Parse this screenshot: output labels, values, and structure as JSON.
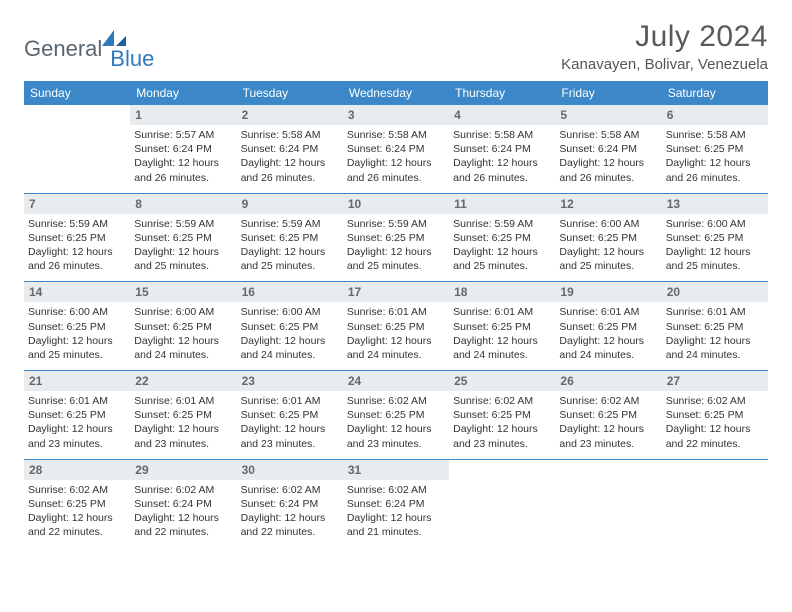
{
  "logo": {
    "text1": "General",
    "text2": "Blue"
  },
  "title": "July 2024",
  "location": "Kanavayen, Bolivar, Venezuela",
  "colors": {
    "header_bg": "#3b87c8",
    "header_fg": "#ffffff",
    "daynum_bg": "#e9ecef",
    "daynum_fg": "#606a72",
    "rule": "#3b87c8",
    "logo_gray": "#5a6770",
    "logo_blue": "#2f78bc"
  },
  "typography": {
    "title_fontsize": 30,
    "location_fontsize": 15,
    "weekday_fontsize": 12,
    "daynum_fontsize": 12,
    "cell_fontsize": 10.5
  },
  "weekdays": [
    "Sunday",
    "Monday",
    "Tuesday",
    "Wednesday",
    "Thursday",
    "Friday",
    "Saturday"
  ],
  "weeks": [
    [
      {
        "n": "",
        "sr": "",
        "ss": "",
        "dl": ""
      },
      {
        "n": "1",
        "sr": "Sunrise: 5:57 AM",
        "ss": "Sunset: 6:24 PM",
        "dl": "Daylight: 12 hours and 26 minutes."
      },
      {
        "n": "2",
        "sr": "Sunrise: 5:58 AM",
        "ss": "Sunset: 6:24 PM",
        "dl": "Daylight: 12 hours and 26 minutes."
      },
      {
        "n": "3",
        "sr": "Sunrise: 5:58 AM",
        "ss": "Sunset: 6:24 PM",
        "dl": "Daylight: 12 hours and 26 minutes."
      },
      {
        "n": "4",
        "sr": "Sunrise: 5:58 AM",
        "ss": "Sunset: 6:24 PM",
        "dl": "Daylight: 12 hours and 26 minutes."
      },
      {
        "n": "5",
        "sr": "Sunrise: 5:58 AM",
        "ss": "Sunset: 6:24 PM",
        "dl": "Daylight: 12 hours and 26 minutes."
      },
      {
        "n": "6",
        "sr": "Sunrise: 5:58 AM",
        "ss": "Sunset: 6:25 PM",
        "dl": "Daylight: 12 hours and 26 minutes."
      }
    ],
    [
      {
        "n": "7",
        "sr": "Sunrise: 5:59 AM",
        "ss": "Sunset: 6:25 PM",
        "dl": "Daylight: 12 hours and 26 minutes."
      },
      {
        "n": "8",
        "sr": "Sunrise: 5:59 AM",
        "ss": "Sunset: 6:25 PM",
        "dl": "Daylight: 12 hours and 25 minutes."
      },
      {
        "n": "9",
        "sr": "Sunrise: 5:59 AM",
        "ss": "Sunset: 6:25 PM",
        "dl": "Daylight: 12 hours and 25 minutes."
      },
      {
        "n": "10",
        "sr": "Sunrise: 5:59 AM",
        "ss": "Sunset: 6:25 PM",
        "dl": "Daylight: 12 hours and 25 minutes."
      },
      {
        "n": "11",
        "sr": "Sunrise: 5:59 AM",
        "ss": "Sunset: 6:25 PM",
        "dl": "Daylight: 12 hours and 25 minutes."
      },
      {
        "n": "12",
        "sr": "Sunrise: 6:00 AM",
        "ss": "Sunset: 6:25 PM",
        "dl": "Daylight: 12 hours and 25 minutes."
      },
      {
        "n": "13",
        "sr": "Sunrise: 6:00 AM",
        "ss": "Sunset: 6:25 PM",
        "dl": "Daylight: 12 hours and 25 minutes."
      }
    ],
    [
      {
        "n": "14",
        "sr": "Sunrise: 6:00 AM",
        "ss": "Sunset: 6:25 PM",
        "dl": "Daylight: 12 hours and 25 minutes."
      },
      {
        "n": "15",
        "sr": "Sunrise: 6:00 AM",
        "ss": "Sunset: 6:25 PM",
        "dl": "Daylight: 12 hours and 24 minutes."
      },
      {
        "n": "16",
        "sr": "Sunrise: 6:00 AM",
        "ss": "Sunset: 6:25 PM",
        "dl": "Daylight: 12 hours and 24 minutes."
      },
      {
        "n": "17",
        "sr": "Sunrise: 6:01 AM",
        "ss": "Sunset: 6:25 PM",
        "dl": "Daylight: 12 hours and 24 minutes."
      },
      {
        "n": "18",
        "sr": "Sunrise: 6:01 AM",
        "ss": "Sunset: 6:25 PM",
        "dl": "Daylight: 12 hours and 24 minutes."
      },
      {
        "n": "19",
        "sr": "Sunrise: 6:01 AM",
        "ss": "Sunset: 6:25 PM",
        "dl": "Daylight: 12 hours and 24 minutes."
      },
      {
        "n": "20",
        "sr": "Sunrise: 6:01 AM",
        "ss": "Sunset: 6:25 PM",
        "dl": "Daylight: 12 hours and 24 minutes."
      }
    ],
    [
      {
        "n": "21",
        "sr": "Sunrise: 6:01 AM",
        "ss": "Sunset: 6:25 PM",
        "dl": "Daylight: 12 hours and 23 minutes."
      },
      {
        "n": "22",
        "sr": "Sunrise: 6:01 AM",
        "ss": "Sunset: 6:25 PM",
        "dl": "Daylight: 12 hours and 23 minutes."
      },
      {
        "n": "23",
        "sr": "Sunrise: 6:01 AM",
        "ss": "Sunset: 6:25 PM",
        "dl": "Daylight: 12 hours and 23 minutes."
      },
      {
        "n": "24",
        "sr": "Sunrise: 6:02 AM",
        "ss": "Sunset: 6:25 PM",
        "dl": "Daylight: 12 hours and 23 minutes."
      },
      {
        "n": "25",
        "sr": "Sunrise: 6:02 AM",
        "ss": "Sunset: 6:25 PM",
        "dl": "Daylight: 12 hours and 23 minutes."
      },
      {
        "n": "26",
        "sr": "Sunrise: 6:02 AM",
        "ss": "Sunset: 6:25 PM",
        "dl": "Daylight: 12 hours and 23 minutes."
      },
      {
        "n": "27",
        "sr": "Sunrise: 6:02 AM",
        "ss": "Sunset: 6:25 PM",
        "dl": "Daylight: 12 hours and 22 minutes."
      }
    ],
    [
      {
        "n": "28",
        "sr": "Sunrise: 6:02 AM",
        "ss": "Sunset: 6:25 PM",
        "dl": "Daylight: 12 hours and 22 minutes."
      },
      {
        "n": "29",
        "sr": "Sunrise: 6:02 AM",
        "ss": "Sunset: 6:24 PM",
        "dl": "Daylight: 12 hours and 22 minutes."
      },
      {
        "n": "30",
        "sr": "Sunrise: 6:02 AM",
        "ss": "Sunset: 6:24 PM",
        "dl": "Daylight: 12 hours and 22 minutes."
      },
      {
        "n": "31",
        "sr": "Sunrise: 6:02 AM",
        "ss": "Sunset: 6:24 PM",
        "dl": "Daylight: 12 hours and 21 minutes."
      },
      {
        "n": "",
        "sr": "",
        "ss": "",
        "dl": ""
      },
      {
        "n": "",
        "sr": "",
        "ss": "",
        "dl": ""
      },
      {
        "n": "",
        "sr": "",
        "ss": "",
        "dl": ""
      }
    ]
  ]
}
